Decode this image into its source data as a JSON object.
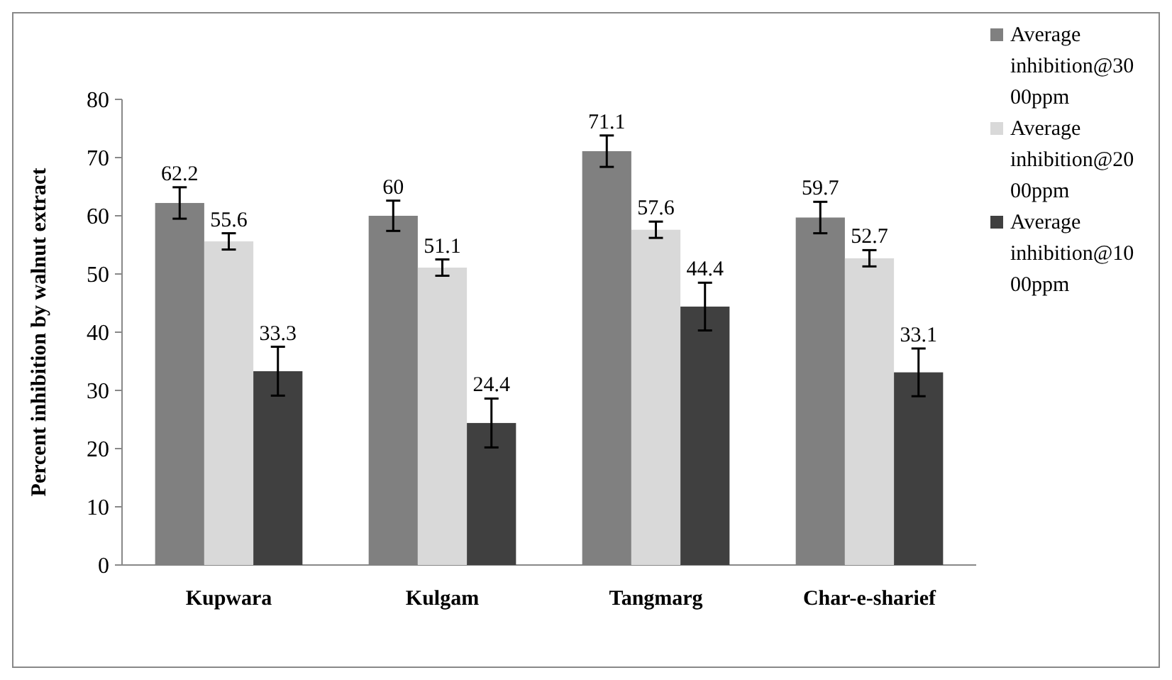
{
  "chart_data": {
    "type": "bar",
    "ylabel": "Percent inhibition by walnut extract",
    "categories": [
      "Kupwara",
      "Kulgam",
      "Tangmarg",
      "Char-e-sharief"
    ],
    "series": [
      {
        "name": "Average inhibition@3000ppm",
        "color": "#808080",
        "values": [
          62.2,
          60,
          71.1,
          59.7
        ],
        "errors": [
          2.7,
          2.6,
          2.7,
          2.7
        ]
      },
      {
        "name": "Average inhibition@2000ppm",
        "color": "#d9d9d9",
        "values": [
          55.6,
          51.1,
          57.6,
          52.7
        ],
        "errors": [
          1.4,
          1.4,
          1.4,
          1.4
        ]
      },
      {
        "name": "Average inhibition@1000ppm",
        "color": "#404040",
        "values": [
          33.3,
          24.4,
          44.4,
          33.1
        ],
        "errors": [
          4.2,
          4.2,
          4.1,
          4.1
        ]
      }
    ],
    "ylim": [
      0,
      80
    ],
    "yticks": [
      0,
      10,
      20,
      30,
      40,
      50,
      60,
      70,
      80
    ],
    "data_labels": true,
    "legend": "right",
    "grid": false
  }
}
